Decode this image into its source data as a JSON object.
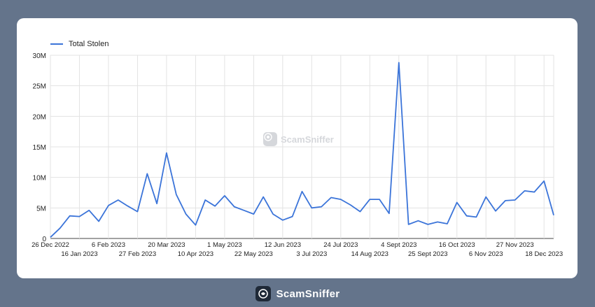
{
  "chart_data": {
    "type": "line",
    "title": "",
    "xlabel": "",
    "ylabel": "",
    "ylim": [
      0,
      30000000
    ],
    "yticks": [
      "0",
      "5M",
      "10M",
      "15M",
      "20M",
      "25M",
      "30M"
    ],
    "xticks": [
      "26 Dec 2022",
      "16 Jan 2023",
      "6 Feb 2023",
      "27 Feb 2023",
      "20 Mar 2023",
      "10 Apr 2023",
      "1 May 2023",
      "22 May 2023",
      "12 Jun 2023",
      "3 Jul 2023",
      "24 Jul 2023",
      "14 Aug 2023",
      "4 Sept 2023",
      "25 Sept 2023",
      "16 Oct 2023",
      "6 Nov 2023",
      "27 Nov 2023",
      "18 Dec 2023"
    ],
    "grid": true,
    "legend_position": "top-left",
    "series": [
      {
        "name": "Total Stolen",
        "color": "#3b74d9",
        "values": [
          200000,
          1700000,
          3700000,
          3600000,
          4600000,
          2800000,
          5400000,
          6300000,
          5300000,
          4400000,
          10600000,
          5700000,
          14000000,
          7200000,
          4000000,
          2200000,
          6300000,
          5300000,
          7000000,
          5200000,
          4600000,
          4000000,
          6800000,
          4000000,
          3000000,
          3600000,
          7700000,
          5000000,
          5200000,
          6700000,
          6400000,
          5500000,
          4400000,
          6400000,
          6400000,
          4100000,
          28800000,
          2300000,
          2900000,
          2300000,
          2700000,
          2400000,
          5900000,
          3700000,
          3500000,
          6800000,
          4500000,
          6200000,
          6300000,
          7800000,
          7600000,
          9400000,
          3800000
        ]
      }
    ]
  },
  "watermark": {
    "text": "ScamSniffer"
  },
  "footer": {
    "brand": "ScamSniffer"
  }
}
